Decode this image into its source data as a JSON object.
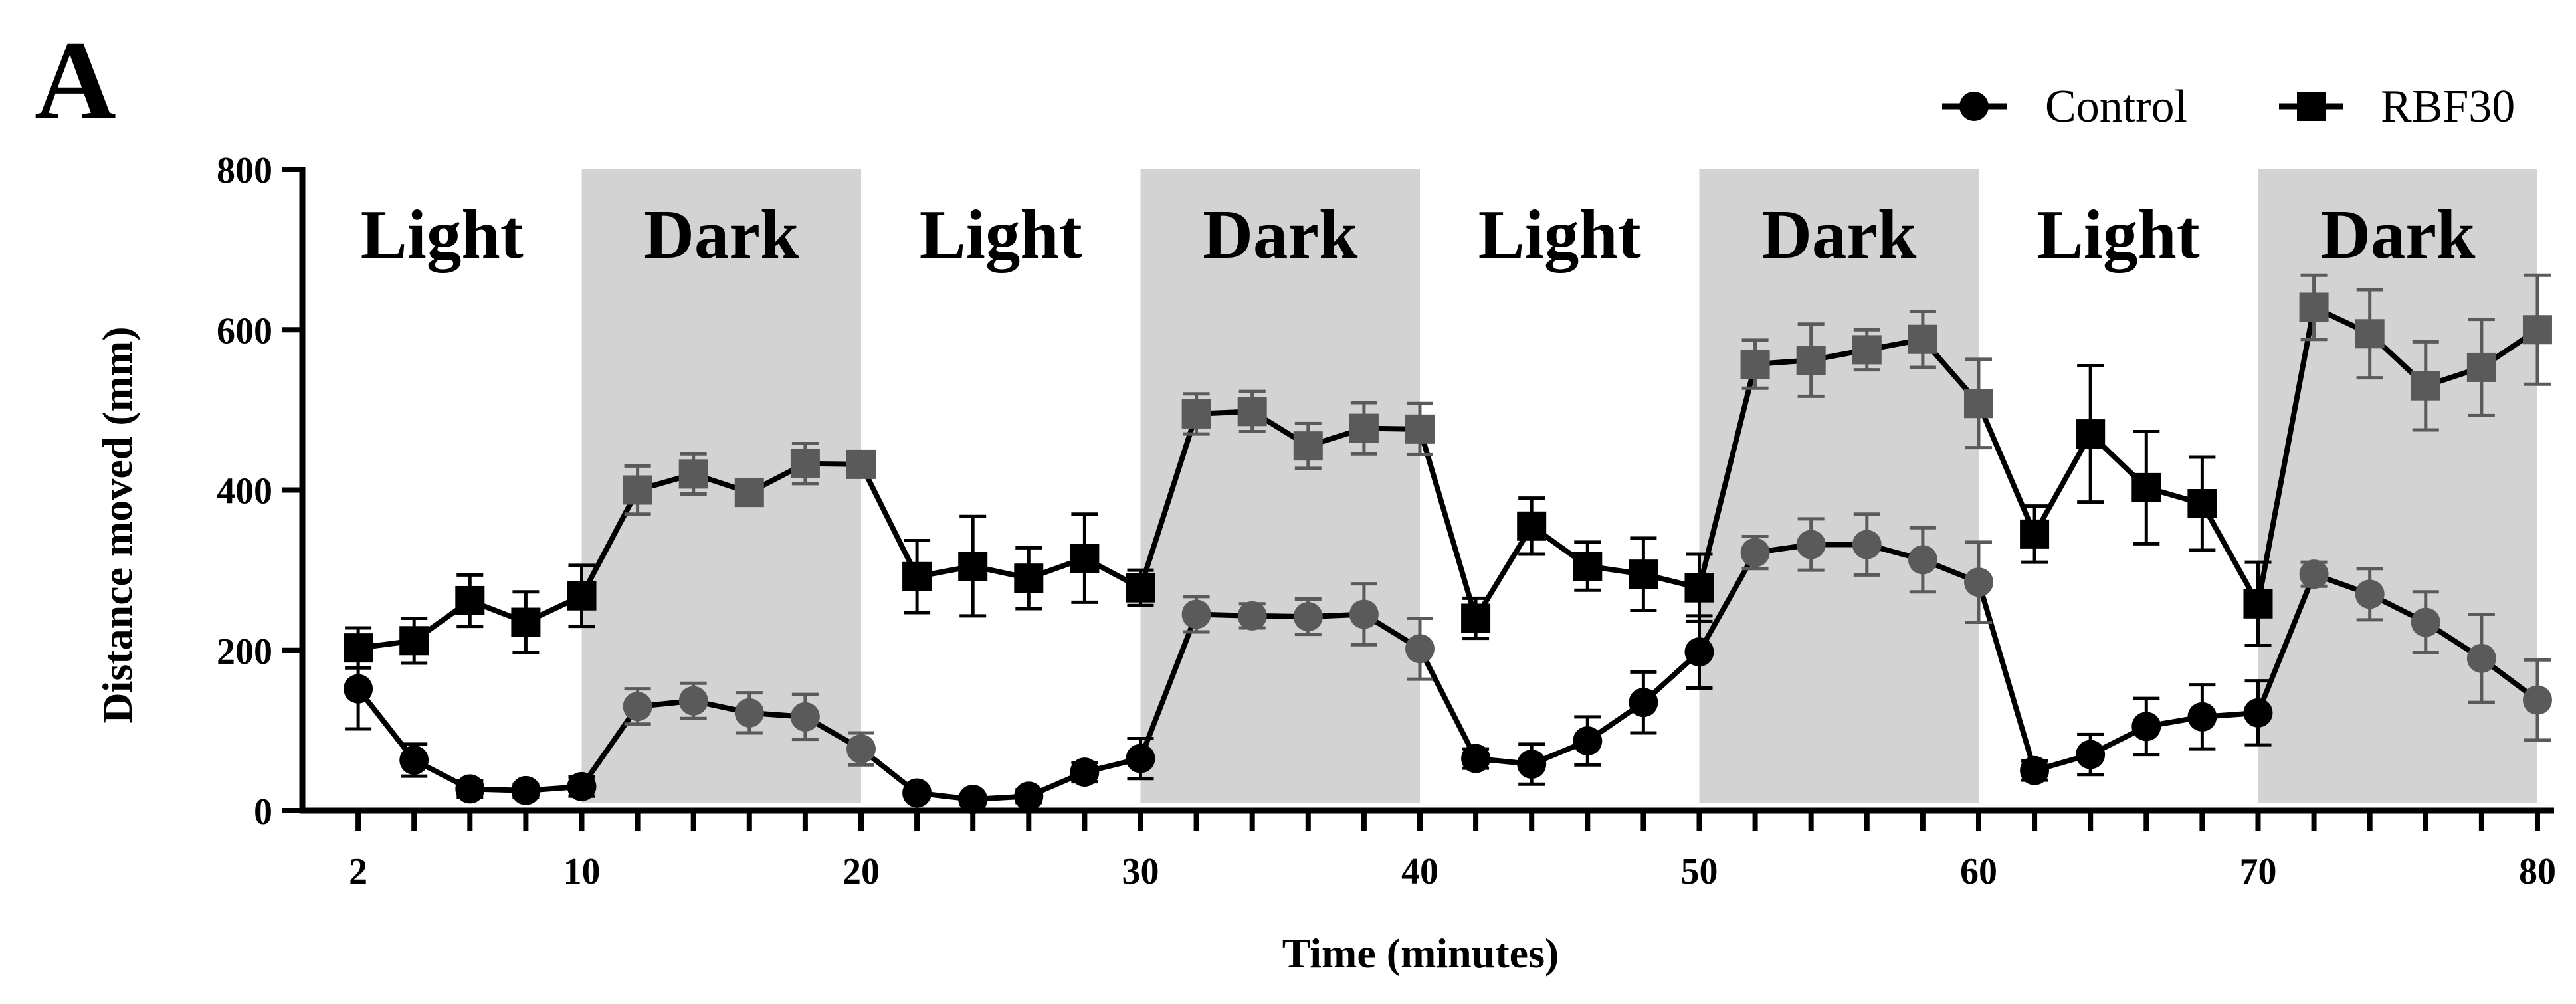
{
  "panel_label": "A",
  "chart_data": {
    "type": "line",
    "title": "",
    "xlabel": "Time (minutes)",
    "ylabel": "Distance moved (mm)",
    "xlim": [
      0,
      80.5
    ],
    "ylim": [
      0,
      800
    ],
    "xticks": [
      2,
      10,
      20,
      30,
      40,
      50,
      60,
      70,
      80
    ],
    "yticks": [
      0,
      200,
      400,
      600,
      800
    ],
    "xtick_labels": [
      "2",
      "10",
      "20",
      "30",
      "40",
      "50",
      "60",
      "70",
      "80"
    ],
    "ytick_labels": [
      "0",
      "200",
      "400",
      "600",
      "800"
    ],
    "legend_position": "top-right",
    "periods": [
      {
        "label": "Light",
        "start": 0,
        "end": 10,
        "shaded": false
      },
      {
        "label": "Dark",
        "start": 10,
        "end": 20,
        "shaded": true
      },
      {
        "label": "Light",
        "start": 20,
        "end": 30,
        "shaded": false
      },
      {
        "label": "Dark",
        "start": 30,
        "end": 40,
        "shaded": true
      },
      {
        "label": "Light",
        "start": 40,
        "end": 50,
        "shaded": false
      },
      {
        "label": "Dark",
        "start": 50,
        "end": 60,
        "shaded": true
      },
      {
        "label": "Light",
        "start": 60,
        "end": 70,
        "shaded": false
      },
      {
        "label": "Dark",
        "start": 70,
        "end": 80,
        "shaded": true
      }
    ],
    "x": [
      2,
      4,
      6,
      8,
      10,
      12,
      14,
      16,
      18,
      20,
      22,
      24,
      26,
      28,
      30,
      32,
      34,
      36,
      38,
      40,
      42,
      44,
      46,
      48,
      50,
      52,
      54,
      56,
      58,
      60,
      62,
      64,
      66,
      68,
      70,
      72,
      74,
      76,
      78,
      80
    ],
    "series": [
      {
        "name": "Control",
        "marker": "circle",
        "values": [
          152,
          63,
          27,
          25,
          30,
          130,
          137,
          122,
          117,
          77,
          22,
          14,
          18,
          48,
          65,
          245,
          243,
          242,
          245,
          202,
          65,
          58,
          87,
          135,
          198,
          322,
          332,
          332,
          313,
          285,
          50,
          70,
          105,
          117,
          122,
          295,
          270,
          235,
          190,
          138
        ],
        "errors": [
          50,
          20,
          10,
          8,
          12,
          22,
          22,
          25,
          28,
          20,
          8,
          6,
          8,
          12,
          25,
          22,
          15,
          22,
          38,
          38,
          12,
          25,
          30,
          38,
          45,
          20,
          32,
          38,
          40,
          50,
          12,
          25,
          35,
          40,
          40,
          15,
          32,
          38,
          55,
          50
        ]
      },
      {
        "name": "RBF30",
        "marker": "square",
        "values": [
          203,
          212,
          262,
          235,
          268,
          400,
          420,
          397,
          433,
          432,
          292,
          305,
          290,
          315,
          278,
          495,
          498,
          455,
          477,
          476,
          240,
          355,
          305,
          295,
          278,
          557,
          562,
          575,
          588,
          508,
          345,
          470,
          403,
          383,
          258,
          628,
          595,
          530,
          553,
          600
        ],
        "errors": [
          25,
          28,
          32,
          38,
          38,
          30,
          25,
          15,
          25,
          15,
          45,
          62,
          38,
          55,
          22,
          25,
          25,
          28,
          32,
          32,
          25,
          35,
          30,
          45,
          42,
          30,
          45,
          25,
          35,
          55,
          35,
          85,
          70,
          58,
          52,
          40,
          55,
          55,
          60,
          68
        ]
      }
    ],
    "colors": {
      "axis": "#000000",
      "shade": "#d3d3d3",
      "line": "#000000",
      "dark_marker": "#000000",
      "light_period_marker": "#000000",
      "dark_period_marker": "#5a5a5a"
    }
  }
}
